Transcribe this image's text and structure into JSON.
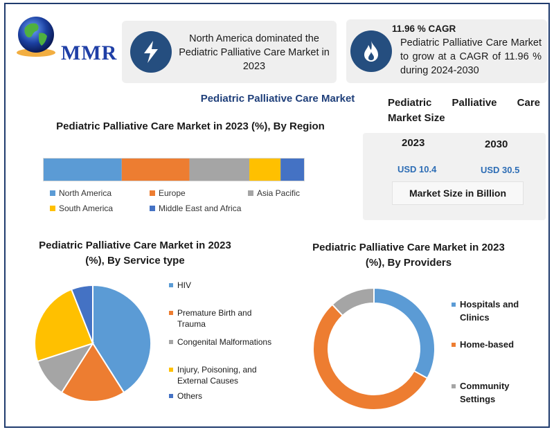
{
  "logo": {
    "text": "MMR"
  },
  "colors": {
    "blue": "#5b9bd5",
    "orange": "#ed7d31",
    "gray": "#a5a5a5",
    "yellow": "#ffc000",
    "dark_blue": "#4472c4",
    "navy": "#254e7f",
    "accent_text": "#2d6db5"
  },
  "cards": {
    "dominance": {
      "icon": "lightning-bolt-icon",
      "text": "North America dominated the Pediatric Palliative Care Market in 2023"
    },
    "cagr": {
      "icon": "flame-icon",
      "title": "11.96 % CAGR",
      "text": "Pediatric Palliative Care Market to grow at a CAGR of 11.96 % during 2024-2030"
    }
  },
  "main_title": "Pediatric Palliative Care Market",
  "market_size": {
    "title": "Pediatric Palliative Care Market Size",
    "year_1": "2023",
    "year_2": "2030",
    "value_1": "USD 10.4",
    "value_2": "USD 30.5",
    "unit_label": "Market Size in Billion"
  },
  "chart_data": [
    {
      "type": "bar",
      "orientation": "horizontal-stacked",
      "title": "Pediatric Palliative Care Market in 2023 (%), By Region",
      "categories": [
        "North America",
        "Europe",
        "Asia Pacific",
        "South America",
        "Middle East and Africa"
      ],
      "values": [
        30,
        26,
        23,
        12,
        9
      ],
      "legend_position": "bottom"
    },
    {
      "type": "pie",
      "title": "Pediatric Palliative Care Market in 2023 (%), By Service type",
      "categories": [
        "HIV",
        "Premature Birth and Trauma",
        "Congenital Malformations",
        "Injury, Poisoning, and External Causes",
        "Others"
      ],
      "values": [
        41,
        18,
        11,
        24,
        6
      ],
      "legend_position": "right"
    },
    {
      "type": "pie",
      "subtype": "donut",
      "title": "Pediatric Palliative Care Market in 2023 (%), By Providers",
      "categories": [
        "Hospitals and Clinics",
        "Home-based",
        "Community Settings"
      ],
      "values": [
        33,
        55,
        12
      ],
      "legend_position": "right"
    }
  ]
}
